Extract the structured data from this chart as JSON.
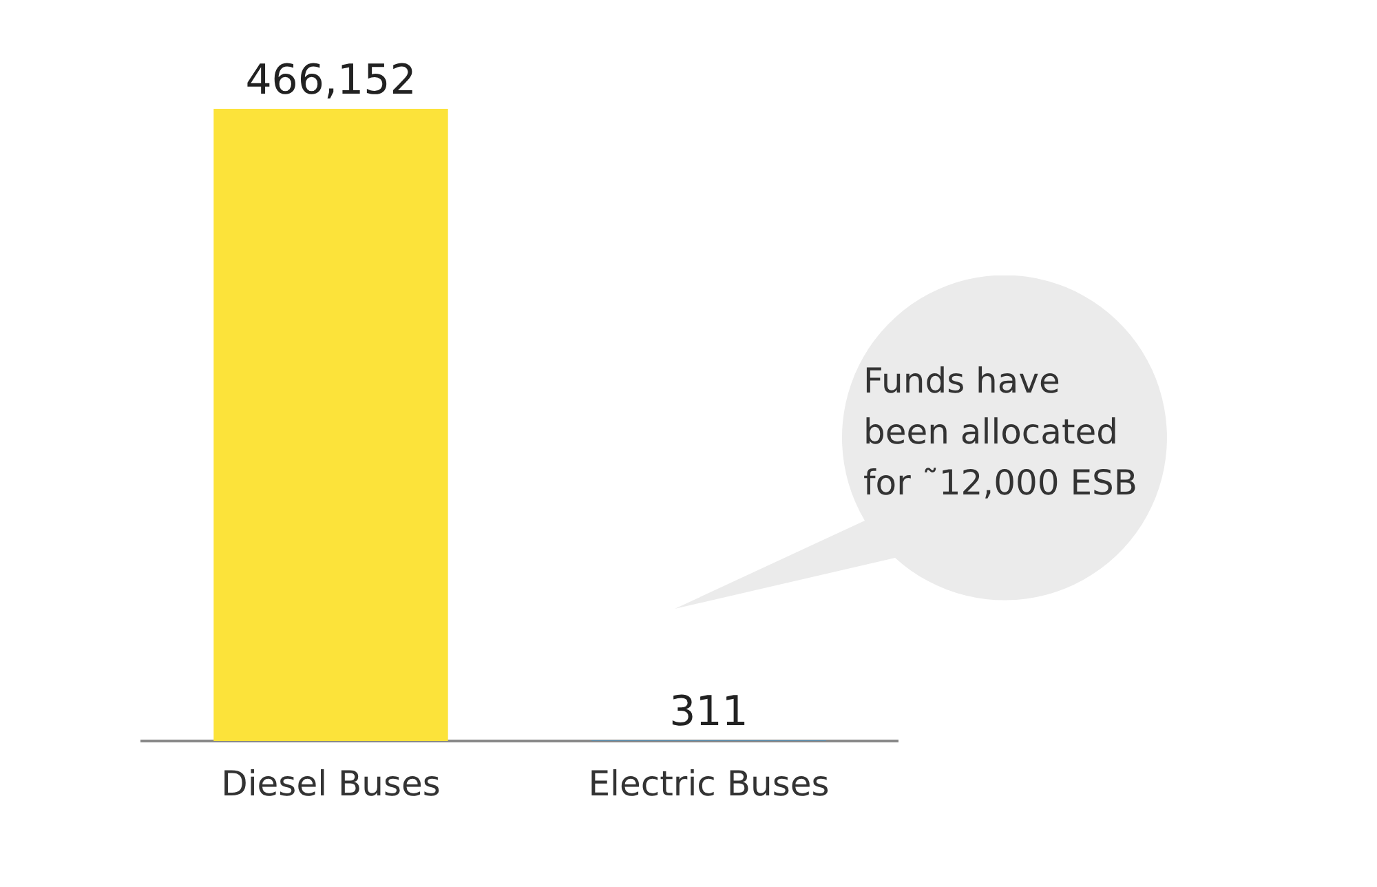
{
  "chart_data": {
    "type": "bar",
    "categories": [
      "Diesel Buses",
      "Electric Buses"
    ],
    "values": [
      466152,
      311
    ],
    "colors": [
      "#fce33a",
      "#2f9ce0"
    ],
    "value_labels": [
      "466,152",
      "311"
    ],
    "grid": false,
    "legend": false,
    "annotations": [
      "Funds have\nbeen allocated\nfor ˜12,000 ESB"
    ]
  }
}
